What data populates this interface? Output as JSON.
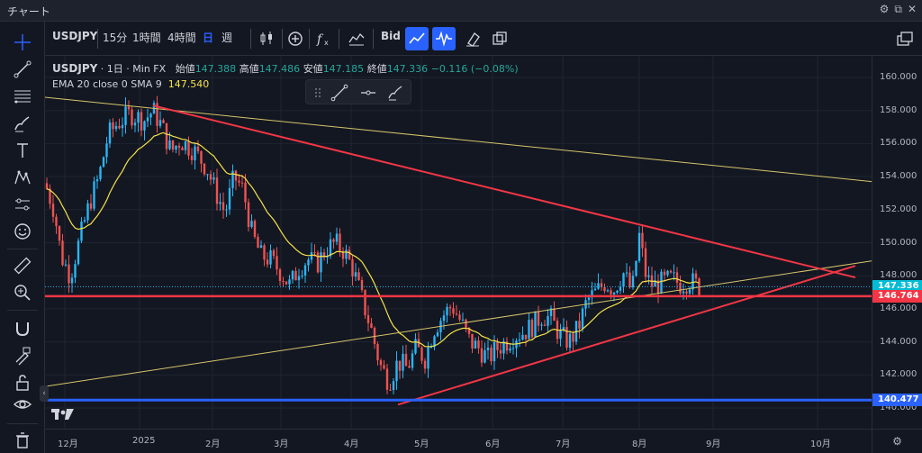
{
  "window": {
    "title": "チャート"
  },
  "toolbar": {
    "symbol": "USDJPY",
    "intervals": [
      "15分",
      "1時間",
      "4時間",
      "日",
      "週"
    ],
    "active_interval": "日",
    "bid_label": "Bid"
  },
  "legend": {
    "symbol": "USDJPY",
    "interval": "1日",
    "source": "Min FX",
    "open_label": "始値",
    "open": "147.388",
    "high_label": "高値",
    "high": "147.486",
    "low_label": "安値",
    "low": "147.185",
    "close_label": "終値",
    "close": "147.336",
    "change": "−0.116 (−0.08%)"
  },
  "indicator": {
    "label": "EMA 20 close 0 SMA 9",
    "value": "147.540"
  },
  "price_axis": {
    "ticks": [
      "160.000",
      "158.000",
      "156.000",
      "154.000",
      "152.000",
      "150.000",
      "148.000",
      "146.000",
      "144.000",
      "142.000",
      "140.000"
    ],
    "tags": [
      {
        "value": "147.336",
        "color": "#00bcd4"
      },
      {
        "value": "146.764",
        "color": "#f23645"
      },
      {
        "value": "140.477",
        "color": "#2962ff"
      }
    ]
  },
  "time_axis": {
    "ticks": [
      "12月",
      "2025",
      "2月",
      "3月",
      "4月",
      "5月",
      "6月",
      "7月",
      "8月",
      "9月",
      "10月"
    ]
  },
  "colors": {
    "up": "#26a69a",
    "upBody": "#29b6f6",
    "down": "#ef5350",
    "ema": "#f5e347",
    "trend_red": "#f23645",
    "support_blue": "#2962ff",
    "thin_line": "#d6c56a"
  },
  "icons": {
    "left": [
      "crosshair-icon",
      "trendline-icon",
      "fib-icon",
      "brush-icon",
      "text-icon",
      "pattern-icon",
      "forecast-icon",
      "emoji-icon",
      "ruler-icon",
      "zoom-icon",
      "magnet-icon",
      "lock-draw-icon",
      "lock-icon",
      "eye-icon",
      "trash-icon"
    ]
  }
}
